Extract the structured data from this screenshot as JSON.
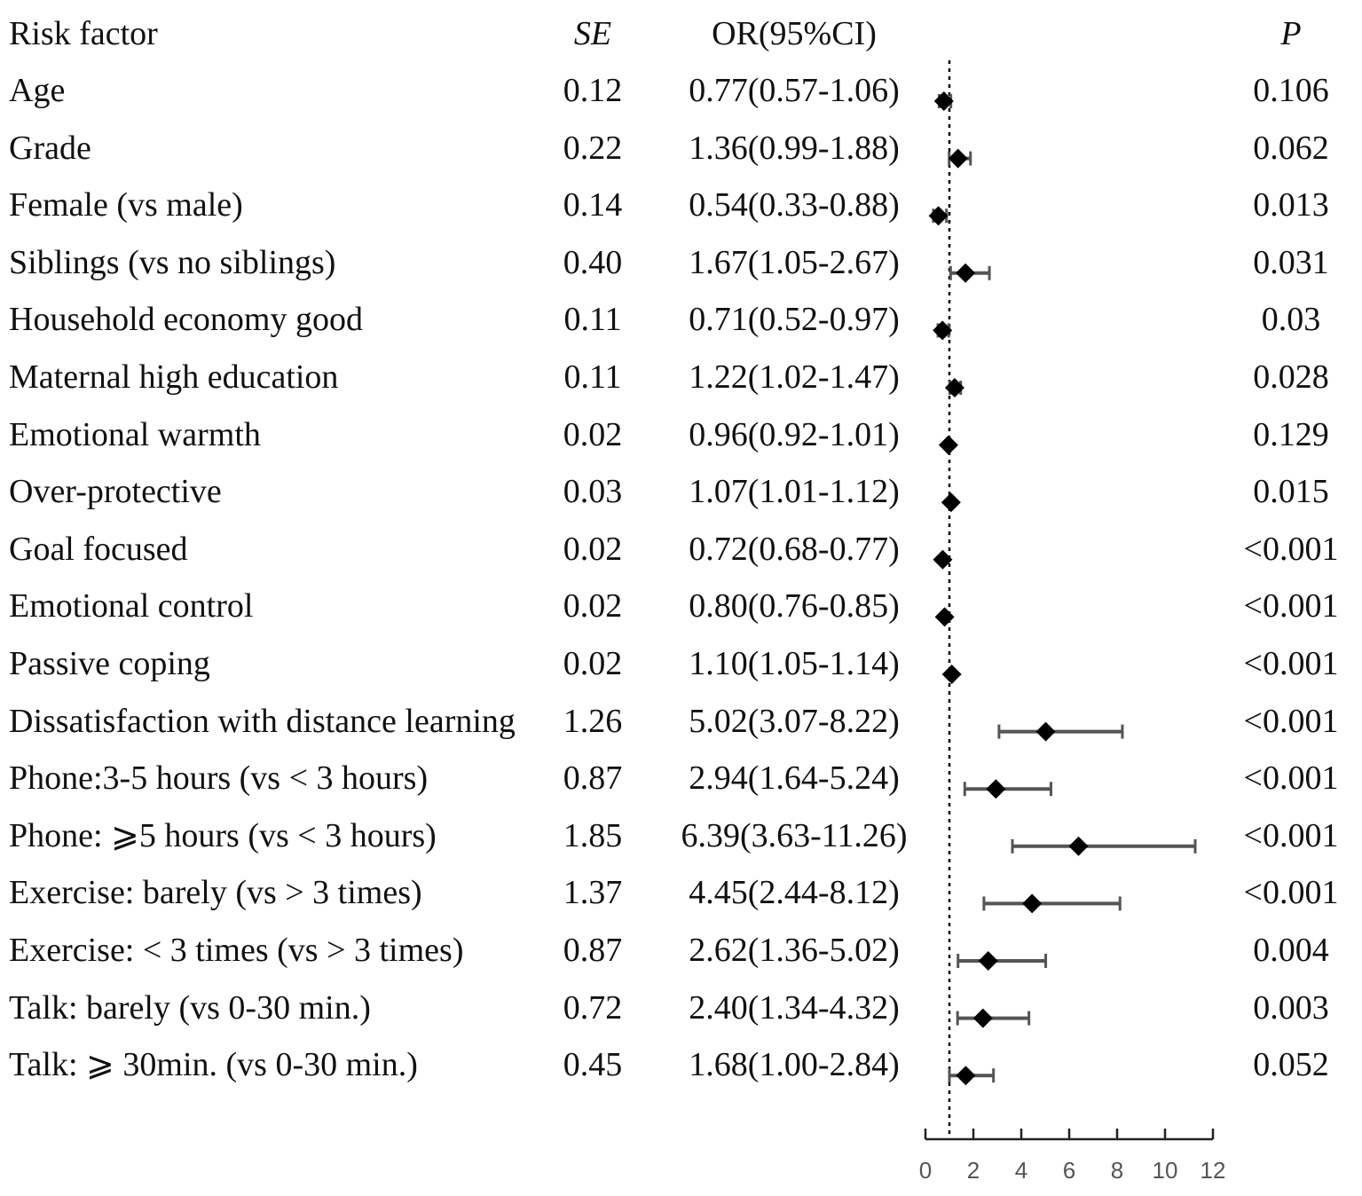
{
  "headers": {
    "factor": "Risk factor",
    "se": "SE",
    "ci": "OR(95%CI)",
    "p": "P"
  },
  "rows": [
    {
      "factor": "Age",
      "se": "0.12",
      "ci": "0.77(0.57-1.06)",
      "p": "0.106"
    },
    {
      "factor": "Grade",
      "se": "0.22",
      "ci": "1.36(0.99-1.88)",
      "p": "0.062"
    },
    {
      "factor": "Female (vs male)",
      "se": "0.14",
      "ci": "0.54(0.33-0.88)",
      "p": "0.013"
    },
    {
      "factor": "Siblings (vs no siblings)",
      "se": "0.40",
      "ci": "1.67(1.05-2.67)",
      "p": "0.031"
    },
    {
      "factor": "Household economy good",
      "se": "0.11",
      "ci": "0.71(0.52-0.97)",
      "p": "0.03"
    },
    {
      "factor": "Maternal high education",
      "se": "0.11",
      "ci": "1.22(1.02-1.47)",
      "p": "0.028"
    },
    {
      "factor": "Emotional warmth",
      "se": "0.02",
      "ci": "0.96(0.92-1.01)",
      "p": "0.129"
    },
    {
      "factor": "Over-protective",
      "se": "0.03",
      "ci": "1.07(1.01-1.12)",
      "p": "0.015"
    },
    {
      "factor": "Goal focused",
      "se": "0.02",
      "ci": "0.72(0.68-0.77)",
      "p": "<0.001"
    },
    {
      "factor": "Emotional control",
      "se": "0.02",
      "ci": "0.80(0.76-0.85)",
      "p": "<0.001"
    },
    {
      "factor": "Passive coping",
      "se": "0.02",
      "ci": "1.10(1.05-1.14)",
      "p": "<0.001"
    },
    {
      "factor": "Dissatisfaction with distance learning",
      "se": "1.26",
      "ci": "5.02(3.07-8.22)",
      "p": "<0.001"
    },
    {
      "factor": "Phone:3-5 hours (vs < 3 hours)",
      "se": "0.87",
      "ci": "2.94(1.64-5.24)",
      "p": "<0.001"
    },
    {
      "factor": "Phone: ⩾5 hours (vs < 3 hours)",
      "se": "1.85",
      "ci": "6.39(3.63-11.26)",
      "p": "<0.001"
    },
    {
      "factor": "Exercise: barely (vs > 3 times)",
      "se": "1.37",
      "ci": "4.45(2.44-8.12)",
      "p": "<0.001"
    },
    {
      "factor": "Exercise: < 3 times (vs > 3 times)",
      "se": "0.87",
      "ci": "2.62(1.36-5.02)",
      "p": "0.004"
    },
    {
      "factor": "Talk:  barely (vs 0-30 min.)",
      "se": "0.72",
      "ci": "2.40(1.34-4.32)",
      "p": "0.003"
    },
    {
      "factor": "Talk: ⩾ 30min. (vs 0-30 min.)",
      "se": "0.45",
      "ci": "1.68(1.00-2.84)",
      "p": "0.052"
    }
  ],
  "chart_data": {
    "type": "forest",
    "title": "",
    "xlabel": "",
    "ylabel": "",
    "xlim": [
      0,
      12
    ],
    "xticks": [
      "0",
      "2",
      "4",
      "6",
      "8",
      "10",
      "12"
    ],
    "reference_line": 1,
    "grid": false,
    "categories": [
      "Age",
      "Grade",
      "Female (vs male)",
      "Siblings (vs no siblings)",
      "Household economy good",
      "Maternal high education",
      "Emotional warmth",
      "Over-protective",
      "Goal focused",
      "Emotional control",
      "Passive coping",
      "Dissatisfaction with distance learning",
      "Phone:3-5 hours (vs < 3 hours)",
      "Phone: ⩾5 hours (vs < 3 hours)",
      "Exercise: barely (vs > 3 times)",
      "Exercise: < 3 times (vs > 3 times)",
      "Talk:  barely (vs 0-30 min.)",
      "Talk: ⩾ 30min. (vs 0-30 min.)"
    ],
    "or": [
      0.77,
      1.36,
      0.54,
      1.67,
      0.71,
      1.22,
      0.96,
      1.07,
      0.72,
      0.8,
      1.1,
      5.02,
      2.94,
      6.39,
      4.45,
      2.62,
      2.4,
      1.68
    ],
    "lower": [
      0.57,
      0.99,
      0.33,
      1.05,
      0.52,
      1.02,
      0.92,
      1.01,
      0.68,
      0.76,
      1.05,
      3.07,
      1.64,
      3.63,
      2.44,
      1.36,
      1.34,
      1.0
    ],
    "upper": [
      1.06,
      1.88,
      0.88,
      2.67,
      0.97,
      1.47,
      1.01,
      1.12,
      0.77,
      0.85,
      1.14,
      8.22,
      5.24,
      11.26,
      8.12,
      5.02,
      4.32,
      2.84
    ]
  },
  "colors": {
    "marker": "#000000",
    "whisker": "#555555",
    "axis": "#222222",
    "tick_label": "#555555"
  }
}
